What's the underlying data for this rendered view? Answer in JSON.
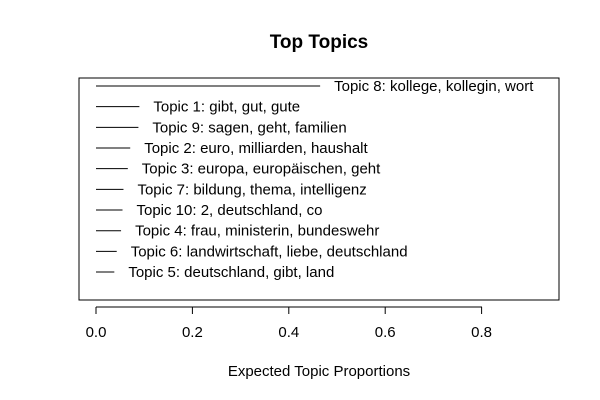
{
  "chart_data": {
    "type": "bar",
    "orientation": "horizontal",
    "title": "Top Topics",
    "xlabel": "Expected Topic Proportions",
    "ylabel": "",
    "xlim": [
      0,
      0.96
    ],
    "xticks": [
      0.0,
      0.2,
      0.4,
      0.6,
      0.8
    ],
    "xtick_labels": [
      "0.0",
      "0.2",
      "0.4",
      "0.6",
      "0.8"
    ],
    "grid": false,
    "topics": [
      {
        "label": "Topic 8: kollege, kollegin, wort",
        "value": 0.465
      },
      {
        "label": "Topic 1: gibt, gut, gute",
        "value": 0.09
      },
      {
        "label": "Topic 9: sagen, geht, familien",
        "value": 0.088
      },
      {
        "label": "Topic 2: euro, milliarden, haushalt",
        "value": 0.071
      },
      {
        "label": "Topic 3: europa, europäischen, geht",
        "value": 0.066
      },
      {
        "label": "Topic 7: bildung, thema, intelligenz",
        "value": 0.057
      },
      {
        "label": "Topic 10: 2, deutschland, co",
        "value": 0.055
      },
      {
        "label": "Topic 4: frau, ministerin, bundeswehr",
        "value": 0.052
      },
      {
        "label": "Topic 6: landwirtschaft, liebe, deutschland",
        "value": 0.043
      },
      {
        "label": "Topic 5: deutschland, gibt, land",
        "value": 0.038
      }
    ]
  }
}
